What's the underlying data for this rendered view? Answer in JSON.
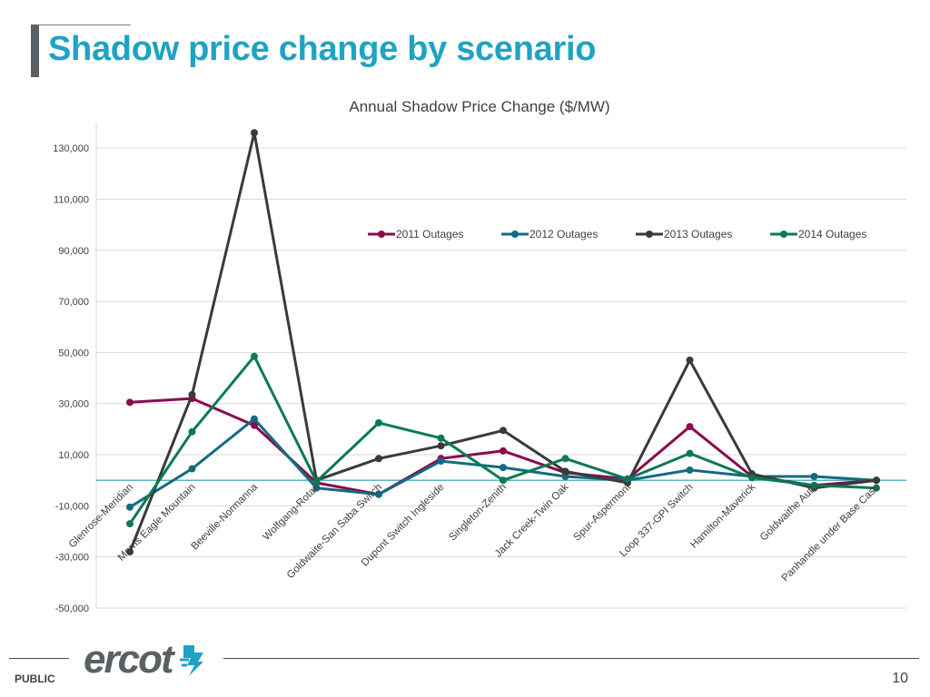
{
  "slide": {
    "title": "Shadow price change by scenario",
    "footer_label": "PUBLIC",
    "page_number": "10",
    "logo_text": "ercot"
  },
  "colors": {
    "title": "#1fa3c3",
    "grid": "#d9d9d9",
    "zero_line": "#2f9ab0"
  },
  "chart_data": {
    "type": "line",
    "title": "Annual Shadow Price Change ($/MW)",
    "xlabel": "",
    "ylabel": "",
    "ylim": [
      -50000,
      140000
    ],
    "yticks": [
      -50000,
      -30000,
      -10000,
      10000,
      30000,
      50000,
      70000,
      90000,
      110000,
      130000
    ],
    "ytick_labels": [
      "-50,000",
      "-30,000",
      "-10,000",
      "10,000",
      "30,000",
      "50,000",
      "70,000",
      "90,000",
      "110,000",
      "130,000"
    ],
    "grid": true,
    "legend_position": "top-right",
    "categories": [
      "Glenrose-Meridian",
      "Morris Eagle Mountain",
      "Beeville-Normanna",
      "Wolfgang-Rotan",
      "Goldwaite-San Saba Switch",
      "Dupont Switch Ingleside",
      "Singleton-Zenith",
      "Jack Creek-Twin Oak",
      "Spur-Aspermont",
      "Loop 337-GPI Switch",
      "Hamilton-Maverick",
      "Goldwaithe Auto",
      "Panhandle under Base Case"
    ],
    "series": [
      {
        "name": "2011 Outages",
        "color": "#8b0a50",
        "values": [
          30500,
          32000,
          21500,
          -1000,
          -5500,
          8500,
          11500,
          3000,
          500,
          21000,
          1500,
          -2000,
          0
        ]
      },
      {
        "name": "2012 Outages",
        "color": "#136b82",
        "values": [
          -10500,
          4500,
          24000,
          -3000,
          -5500,
          7500,
          5000,
          1500,
          0,
          4000,
          1500,
          1500,
          0
        ]
      },
      {
        "name": "2013 Outages",
        "color": "#3a3a3a",
        "values": [
          -28000,
          33500,
          136000,
          0,
          8500,
          13500,
          19500,
          3500,
          -1000,
          47000,
          2500,
          -3000,
          0
        ]
      },
      {
        "name": "2014 Outages",
        "color": "#0b7a52",
        "values": [
          -17000,
          19000,
          48500,
          -500,
          22500,
          16500,
          0,
          8500,
          500,
          10500,
          1000,
          -2000,
          -3000
        ]
      }
    ]
  }
}
